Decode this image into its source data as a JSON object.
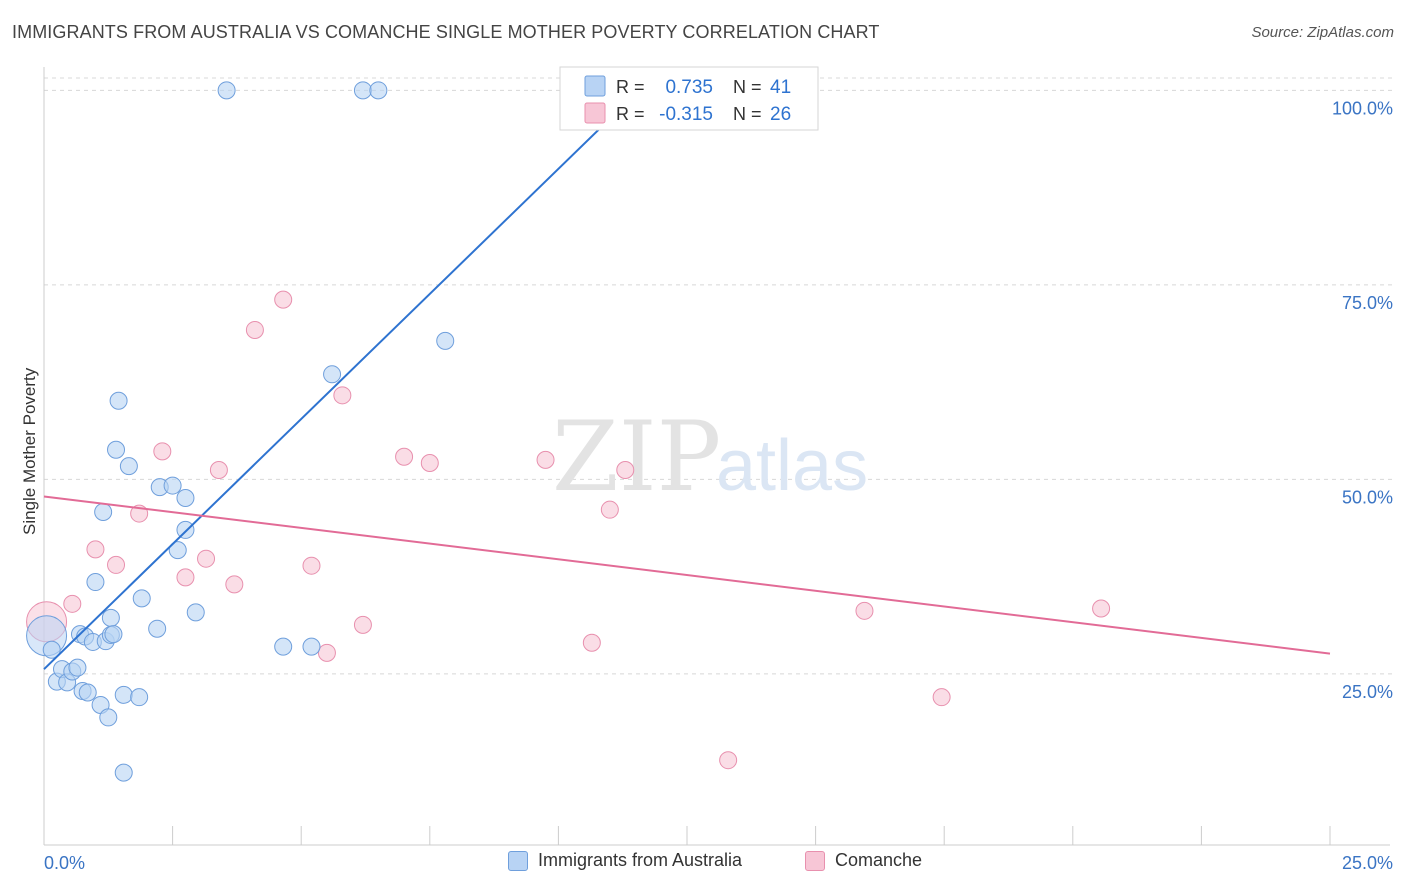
{
  "title": "IMMIGRANTS FROM AUSTRALIA VS COMANCHE SINGLE MOTHER POVERTY CORRELATION CHART",
  "source": "Source: ZipAtlas.com",
  "watermark": {
    "zip": "ZIP",
    "atlas": "atlas"
  },
  "colors": {
    "blue_fill": "#b8d3f4",
    "blue_stroke": "#6f9fdc",
    "blue_line": "#2e73d0",
    "pink_fill": "#f7c6d6",
    "pink_stroke": "#e890ae",
    "pink_line": "#e26b96",
    "axis_text": "#3a74c4",
    "grid": "#d8d8d8"
  },
  "legend": {
    "rows": [
      {
        "r_label": "R =",
        "r_value": "0.735",
        "n_label": "N =",
        "n_value": "41"
      },
      {
        "r_label": "R =",
        "r_value": "-0.315",
        "n_label": "N =",
        "n_value": "26"
      }
    ]
  },
  "bottom_legend": {
    "series1": "Immigrants from Australia",
    "series2": "Comanche"
  },
  "chart_data": {
    "type": "scatter",
    "title": "IMMIGRANTS FROM AUSTRALIA VS COMANCHE SINGLE MOTHER POVERTY CORRELATION CHART",
    "xlabel": "",
    "ylabel": "Single Mother Poverty",
    "xlim": [
      0,
      25
    ],
    "ylim": [
      3,
      103
    ],
    "x_tick_labels": [
      "0.0%",
      "25.0%"
    ],
    "y_ticks": [
      25,
      50,
      75,
      100
    ],
    "y_tick_labels": [
      "25.0%",
      "50.0%",
      "75.0%",
      "100.0%"
    ],
    "grid": true,
    "series": [
      {
        "name": "Immigrants from Australia",
        "r": 0.735,
        "n": 41,
        "trend": {
          "x": [
            0.0,
            11.6
          ],
          "y": [
            25.6,
            100.2
          ]
        },
        "points": [
          {
            "x": 0.05,
            "y": 29.9,
            "big": true
          },
          {
            "x": 0.15,
            "y": 28.1
          },
          {
            "x": 0.25,
            "y": 24.0
          },
          {
            "x": 0.35,
            "y": 25.6
          },
          {
            "x": 0.45,
            "y": 23.9
          },
          {
            "x": 0.55,
            "y": 25.3
          },
          {
            "x": 0.65,
            "y": 25.8
          },
          {
            "x": 0.75,
            "y": 22.8
          },
          {
            "x": 0.7,
            "y": 30.1
          },
          {
            "x": 0.8,
            "y": 29.8
          },
          {
            "x": 0.85,
            "y": 22.6
          },
          {
            "x": 0.95,
            "y": 29.1
          },
          {
            "x": 1.0,
            "y": 36.8
          },
          {
            "x": 1.1,
            "y": 21.0
          },
          {
            "x": 1.15,
            "y": 45.8
          },
          {
            "x": 1.2,
            "y": 29.2
          },
          {
            "x": 1.25,
            "y": 19.4
          },
          {
            "x": 1.3,
            "y": 32.2
          },
          {
            "x": 1.3,
            "y": 30.0
          },
          {
            "x": 1.35,
            "y": 30.1
          },
          {
            "x": 1.4,
            "y": 53.8
          },
          {
            "x": 1.45,
            "y": 60.1
          },
          {
            "x": 1.55,
            "y": 22.3
          },
          {
            "x": 1.55,
            "y": 12.3
          },
          {
            "x": 1.65,
            "y": 51.7
          },
          {
            "x": 1.85,
            "y": 22.0
          },
          {
            "x": 1.9,
            "y": 34.7
          },
          {
            "x": 2.2,
            "y": 30.8
          },
          {
            "x": 2.25,
            "y": 49.0
          },
          {
            "x": 2.5,
            "y": 49.2
          },
          {
            "x": 2.6,
            "y": 40.9
          },
          {
            "x": 2.75,
            "y": 43.5
          },
          {
            "x": 2.75,
            "y": 47.6
          },
          {
            "x": 2.95,
            "y": 32.9
          },
          {
            "x": 3.55,
            "y": 100.0
          },
          {
            "x": 4.65,
            "y": 28.5
          },
          {
            "x": 5.2,
            "y": 28.5
          },
          {
            "x": 5.6,
            "y": 63.5
          },
          {
            "x": 6.2,
            "y": 100.0
          },
          {
            "x": 6.5,
            "y": 100.0
          },
          {
            "x": 7.8,
            "y": 67.8
          }
        ]
      },
      {
        "name": "Comanche",
        "r": -0.315,
        "n": 26,
        "trend": {
          "x": [
            0.0,
            25.0
          ],
          "y": [
            47.8,
            27.6
          ]
        },
        "points": [
          {
            "x": 0.05,
            "y": 31.7,
            "big": true
          },
          {
            "x": 0.55,
            "y": 34.0
          },
          {
            "x": 1.0,
            "y": 41.0
          },
          {
            "x": 1.4,
            "y": 39.0
          },
          {
            "x": 1.85,
            "y": 45.6
          },
          {
            "x": 2.3,
            "y": 53.6
          },
          {
            "x": 2.75,
            "y": 37.4
          },
          {
            "x": 3.15,
            "y": 39.8
          },
          {
            "x": 3.4,
            "y": 51.2
          },
          {
            "x": 3.7,
            "y": 36.5
          },
          {
            "x": 4.1,
            "y": 69.2
          },
          {
            "x": 4.65,
            "y": 73.1
          },
          {
            "x": 5.2,
            "y": 38.9
          },
          {
            "x": 5.5,
            "y": 27.7
          },
          {
            "x": 5.8,
            "y": 60.8
          },
          {
            "x": 6.2,
            "y": 31.3
          },
          {
            "x": 7.0,
            "y": 52.9
          },
          {
            "x": 7.5,
            "y": 52.1
          },
          {
            "x": 9.75,
            "y": 52.5
          },
          {
            "x": 10.65,
            "y": 29.0
          },
          {
            "x": 11.0,
            "y": 46.1
          },
          {
            "x": 11.3,
            "y": 51.2
          },
          {
            "x": 13.3,
            "y": 13.9
          },
          {
            "x": 15.95,
            "y": 33.1
          },
          {
            "x": 17.45,
            "y": 22.0
          },
          {
            "x": 20.55,
            "y": 33.4
          }
        ]
      }
    ]
  }
}
